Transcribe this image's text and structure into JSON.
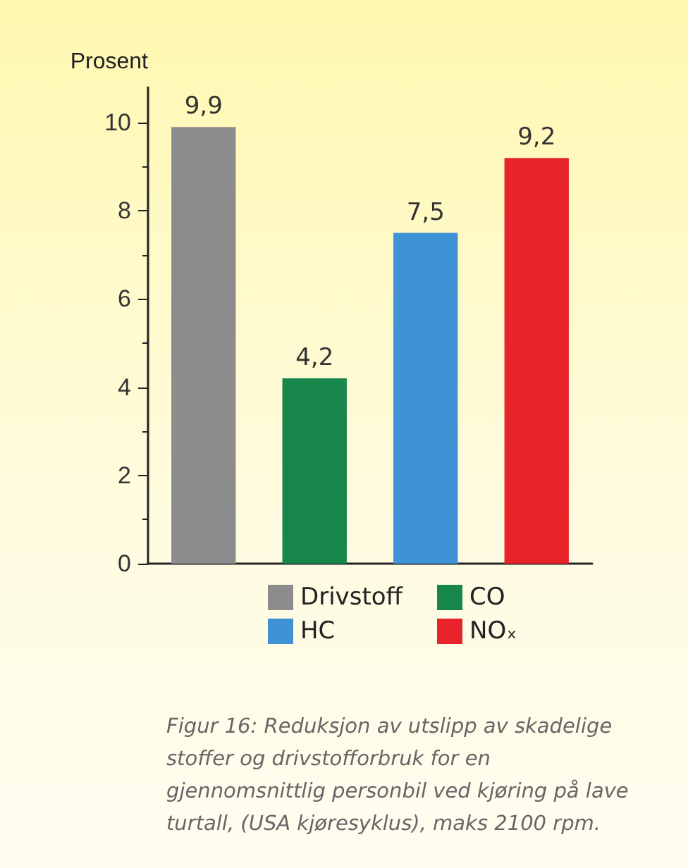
{
  "chart_data": {
    "type": "bar",
    "ylabel": "Prosent",
    "categories": [
      null,
      null,
      null,
      null
    ],
    "series": [
      {
        "name": "Drivstoff",
        "color": "#8c8c8c",
        "values": [
          9.9,
          null,
          null,
          null
        ],
        "value_labels": [
          "9,9",
          null,
          null,
          null
        ]
      },
      {
        "name": "CO",
        "color": "#16864a",
        "values": [
          null,
          4.2,
          null,
          null
        ],
        "value_labels": [
          null,
          "4,2",
          null,
          null
        ]
      },
      {
        "name": "HC",
        "color": "#3f92d6",
        "values": [
          null,
          null,
          7.5,
          null
        ],
        "value_labels": [
          null,
          null,
          "7,5",
          null
        ]
      },
      {
        "name": "NOₓ",
        "color": "#e8232a",
        "values": [
          null,
          null,
          null,
          9.2
        ],
        "value_labels": [
          null,
          null,
          null,
          "9,2"
        ]
      }
    ],
    "ylim": [
      0,
      10.8
    ],
    "yticks": [
      0,
      2,
      4,
      6,
      8,
      10
    ],
    "grid": false,
    "legend": "bottom",
    "annotations": [
      "Figur 16: Reduksjon av utslipp av skadelige stoffer og drivstofforbruk for en gjennomsnittlig personbil ved kjøring på lave turtall, (USA kjøresyklus), maks 2100 rpm."
    ]
  }
}
